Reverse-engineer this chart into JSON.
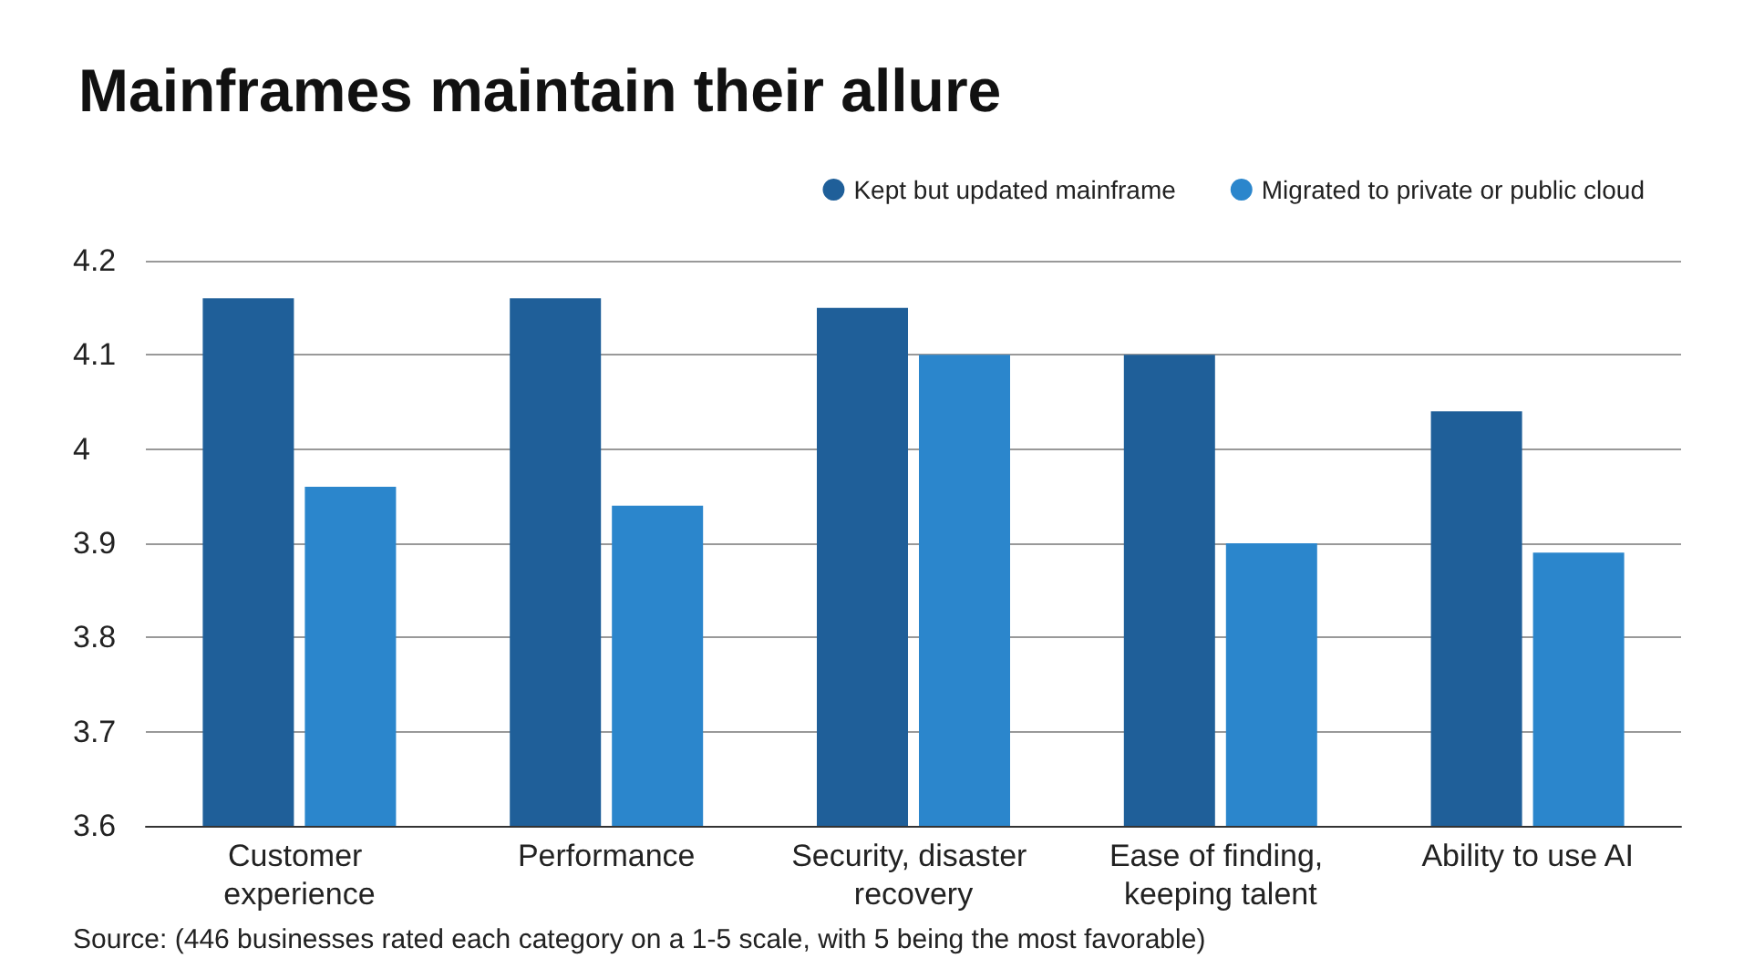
{
  "chart_data": {
    "type": "bar",
    "title": "Mainframes maintain their allure",
    "categories": [
      "Customer experience",
      "Performance",
      "Security, disaster recovery",
      "Ease of finding, keeping talent",
      "Ability to use AI"
    ],
    "series": [
      {
        "name": "Kept but updated mainframe",
        "color": "#1f5f99",
        "values": [
          4.16,
          4.16,
          4.15,
          4.1,
          4.04
        ]
      },
      {
        "name": "Migrated to private or public cloud",
        "color": "#2b86cc",
        "values": [
          3.96,
          3.94,
          4.1,
          3.9,
          3.89
        ]
      }
    ],
    "ylim": [
      3.6,
      4.2
    ],
    "yticks": [
      3.6,
      3.7,
      3.8,
      3.9,
      4,
      4.1,
      4.2
    ],
    "grid": "y",
    "legend": "top right",
    "annotations": [
      "Source: (446 businesses rated each category on a 1-5 scale, with 5 being the most favorable)"
    ]
  }
}
